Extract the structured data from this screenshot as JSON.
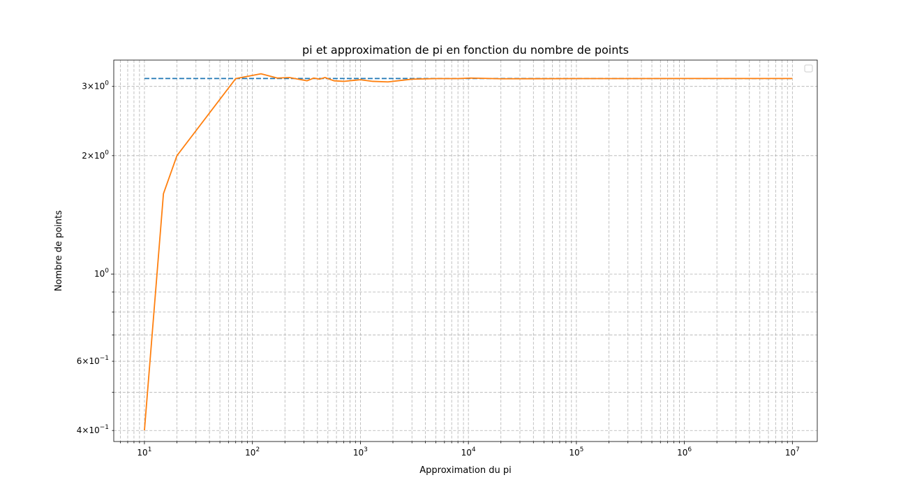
{
  "chart_data": {
    "type": "line",
    "title": "pi et approximation de pi en fonction du nombre de points",
    "xlabel": "Approximation du pi",
    "ylabel": "Nombre de points",
    "xscale": "log",
    "yscale": "log",
    "xlim": [
      5.2,
      17000000
    ],
    "ylim": [
      0.375,
      3.5
    ],
    "grid": "major and minor, dashed",
    "legend": "top-right, empty",
    "x_ticks": [
      {
        "value": 10,
        "base": "10",
        "exp": "1"
      },
      {
        "value": 100,
        "base": "10",
        "exp": "2"
      },
      {
        "value": 1000,
        "base": "10",
        "exp": "3"
      },
      {
        "value": 10000,
        "base": "10",
        "exp": "4"
      },
      {
        "value": 100000,
        "base": "10",
        "exp": "5"
      },
      {
        "value": 1000000,
        "base": "10",
        "exp": "6"
      },
      {
        "value": 10000000,
        "base": "10",
        "exp": "7"
      }
    ],
    "y_ticks": [
      {
        "value": 0.4,
        "mant": "4",
        "base": "10",
        "exp": "−1"
      },
      {
        "value": 0.6,
        "mant": "6",
        "base": "10",
        "exp": "−1"
      },
      {
        "value": 1,
        "mant": "",
        "base": "10",
        "exp": "0"
      },
      {
        "value": 2,
        "mant": "2",
        "base": "10",
        "exp": "0"
      },
      {
        "value": 3,
        "mant": "3",
        "base": "10",
        "exp": "0"
      }
    ],
    "series": [
      {
        "color": "#1f77b4",
        "style": "dashed",
        "x": [
          10,
          10000000
        ],
        "y": [
          3.14159,
          3.14159
        ]
      },
      {
        "color": "#ff7f0e",
        "style": "solid",
        "x": [
          10,
          15,
          20,
          70,
          120,
          170,
          220,
          320,
          370,
          420,
          470,
          570,
          700,
          1000,
          1300,
          1800,
          3000,
          5000,
          8000,
          10500,
          20000,
          100000,
          1000000,
          10000000
        ],
        "y": [
          0.4,
          1.6,
          2.0,
          3.14,
          3.23,
          3.15,
          3.16,
          3.1,
          3.15,
          3.13,
          3.16,
          3.1,
          3.09,
          3.12,
          3.09,
          3.08,
          3.13,
          3.14,
          3.14,
          3.15,
          3.137,
          3.14,
          3.1418,
          3.1416
        ]
      }
    ]
  }
}
